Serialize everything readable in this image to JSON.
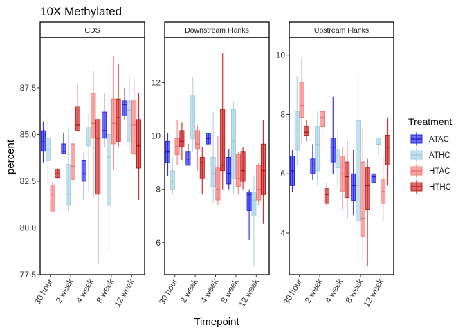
{
  "chart_data": {
    "type": "box",
    "title": "10X Methylated",
    "xlabel": "Timepoint",
    "ylabel": "percent",
    "categories": [
      "30 hour",
      "2 week",
      "4 week",
      "8 week",
      "12 week"
    ],
    "legend": {
      "title": "Treatment",
      "position": "right",
      "entries": [
        {
          "name": "ATAC",
          "color": "#1f1ff5"
        },
        {
          "name": "ATHC",
          "color": "#a7d3e3"
        },
        {
          "name": "HTAC",
          "color": "#f77b7b"
        },
        {
          "name": "HTHC",
          "color": "#cc1a1a"
        }
      ]
    },
    "facets": [
      {
        "name": "CDS",
        "ylim": [
          77.5,
          90.2
        ],
        "yticks": [
          77.5,
          80.0,
          82.5,
          85.0,
          87.5
        ],
        "ytick_labels": [
          "77.5",
          "80.0",
          "82.5",
          "85.0",
          "87.5"
        ],
        "boxes": [
          [
            [
              83.5,
              84.1,
              84.6,
              85.2,
              85.7
            ],
            [
              82.3,
              83.6,
              84.2,
              84.8,
              85.9
            ],
            [
              80.9,
              80.9,
              81.8,
              82.3,
              82.5
            ],
            [
              82.6,
              82.7,
              82.9,
              83.1,
              83.2
            ]
          ],
          [
            [
              84.0,
              84.0,
              84.1,
              84.5,
              85.1
            ],
            [
              80.9,
              81.2,
              81.8,
              83.4,
              85.3
            ],
            [
              82.3,
              82.6,
              83.3,
              84.5,
              85.1
            ],
            [
              85.2,
              85.2,
              85.5,
              86.5,
              87.7
            ]
          ],
          [
            [
              81.5,
              82.5,
              82.9,
              83.6,
              84.0
            ],
            [
              81.9,
              84.4,
              84.6,
              85.4,
              86.1
            ],
            [
              81.6,
              84.8,
              85.6,
              87.2,
              88.4
            ],
            [
              78.1,
              81.8,
              84.8,
              85.8,
              85.9
            ]
          ],
          [
            [
              84.3,
              84.8,
              85.2,
              86.2,
              87.2
            ],
            [
              78.7,
              81.2,
              83.8,
              85.0,
              88.7
            ],
            [
              83.1,
              84.5,
              85.6,
              86.9,
              89.2
            ],
            [
              84.3,
              84.6,
              85.9,
              86.9,
              88.8
            ]
          ],
          [
            [
              85.8,
              86.0,
              86.6,
              86.8,
              87.5
            ],
            [
              84.1,
              84.6,
              86.3,
              86.8,
              88.2
            ],
            [
              83.8,
              84.0,
              85.5,
              86.8,
              88.0
            ],
            [
              81.5,
              83.2,
              84.4,
              85.8,
              87.2
            ]
          ]
        ]
      },
      {
        "name": "Downstream Flanks",
        "ylim": [
          4.8,
          13.7
        ],
        "yticks": [
          6,
          8,
          10,
          12
        ],
        "ytick_labels": [
          "6",
          "8",
          "10",
          "12"
        ],
        "boxes": [
          [
            [
              8.5,
              9.0,
              9.4,
              9.8,
              10.1
            ],
            [
              7.8,
              8.0,
              8.3,
              8.7,
              9.2
            ],
            [
              8.9,
              9.3,
              9.6,
              9.9,
              10.6
            ],
            [
              9.1,
              9.6,
              9.8,
              10.2,
              10.5
            ]
          ],
          [
            [
              8.9,
              8.9,
              9.1,
              9.4,
              9.7
            ],
            [
              9.4,
              9.9,
              11.1,
              11.5,
              12.2
            ],
            [
              8.7,
              9.5,
              9.7,
              10.2,
              10.4
            ],
            [
              7.8,
              8.4,
              9.0,
              9.2,
              9.6
            ]
          ],
          [
            [
              9.7,
              9.7,
              9.9,
              10.1,
              10.1
            ],
            [
              7.5,
              8.1,
              8.6,
              9.2,
              10.9
            ],
            [
              7.4,
              7.6,
              8.0,
              8.8,
              10.0
            ],
            [
              8.0,
              8.7,
              8.9,
              11.0,
              13.1
            ]
          ],
          [
            [
              8.0,
              8.2,
              8.6,
              9.2,
              9.5
            ],
            [
              7.8,
              8.4,
              9.8,
              11.0,
              11.3
            ],
            [
              7.8,
              8.1,
              8.4,
              9.3,
              9.4
            ],
            [
              8.0,
              8.3,
              8.7,
              9.4,
              9.6
            ]
          ],
          [
            [
              6.1,
              7.2,
              7.8,
              7.9,
              8.0
            ],
            [
              5.1,
              7.0,
              7.6,
              7.9,
              8.5
            ],
            [
              7.4,
              7.6,
              8.0,
              8.9,
              9.0
            ],
            [
              6.7,
              7.8,
              8.7,
              9.7,
              10.6
            ]
          ]
        ]
      },
      {
        "name": "Upstream Flanks",
        "ylim": [
          2.6,
          10.6
        ],
        "yticks": [
          4,
          6,
          8,
          10
        ],
        "ytick_labels": [
          "4",
          "6",
          "8",
          "10"
        ],
        "boxes": [
          [
            [
              5.4,
              5.6,
              6.1,
              6.6,
              6.8
            ],
            [
              6.3,
              6.8,
              7.5,
              8.1,
              9.3
            ],
            [
              7.0,
              7.9,
              8.3,
              9.1,
              9.9
            ],
            [
              7.1,
              7.3,
              7.4,
              7.6,
              7.8
            ]
          ],
          [
            [
              5.8,
              6.0,
              6.3,
              6.5,
              7.0
            ],
            [
              5.6,
              6.1,
              7.0,
              7.6,
              8.1
            ],
            [
              6.8,
              7.6,
              7.9,
              8.1,
              8.1
            ],
            [
              4.9,
              5.0,
              5.3,
              5.5,
              5.7
            ]
          ],
          [
            [
              6.0,
              6.4,
              6.9,
              7.2,
              8.6
            ],
            [
              5.5,
              6.2,
              6.6,
              6.8,
              7.5
            ],
            [
              4.8,
              5.4,
              6.0,
              6.6,
              6.9
            ],
            [
              4.5,
              5.2,
              5.9,
              6.4,
              7.1
            ]
          ],
          [
            [
              4.6,
              5.1,
              5.6,
              6.0,
              6.8
            ],
            [
              3.0,
              4.4,
              5.6,
              7.8,
              9.3
            ],
            [
              3.1,
              3.9,
              4.5,
              6.4,
              7.6
            ],
            [
              2.9,
              4.8,
              5.6,
              6.2,
              6.5
            ]
          ],
          [
            [
              5.7,
              5.7,
              5.9,
              6.0,
              6.0
            ],
            [
              6.6,
              7.0,
              7.0,
              7.2,
              7.2
            ],
            [
              4.4,
              5.0,
              5.4,
              5.8,
              6.6
            ],
            [
              5.6,
              6.3,
              6.9,
              7.3,
              7.9
            ]
          ]
        ]
      }
    ]
  }
}
